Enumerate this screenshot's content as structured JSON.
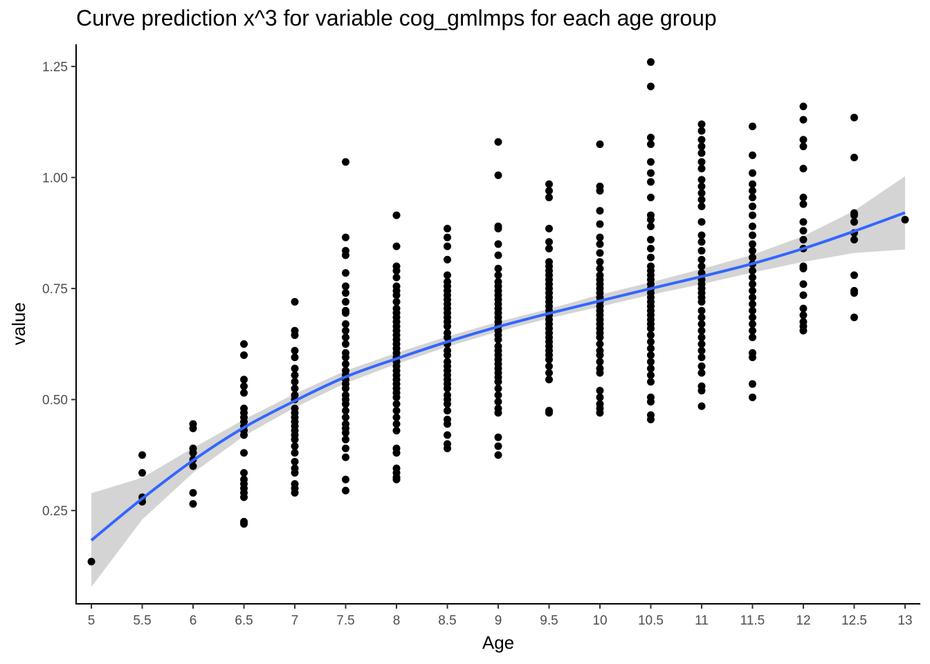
{
  "chart_data": {
    "type": "scatter",
    "title": "Curve prediction x^3  for variable cog_gmlmps for each age group",
    "xlabel": "Age",
    "ylabel": "value",
    "xlim": [
      4.85,
      13.15
    ],
    "ylim": [
      0.04,
      1.3
    ],
    "x_ticks": [
      5,
      5.5,
      6,
      6.5,
      7,
      7.5,
      8,
      8.5,
      9,
      9.5,
      10,
      10.5,
      11,
      11.5,
      12,
      12.5,
      13
    ],
    "x_tick_labels": [
      "5",
      "5.5",
      "6",
      "6.5",
      "7",
      "7.5",
      "8",
      "8.5",
      "9",
      "9.5",
      "10",
      "10.5",
      "11",
      "11.5",
      "12",
      "12.5",
      "13"
    ],
    "y_ticks": [
      0.25,
      0.5,
      0.75,
      1.0,
      1.25
    ],
    "y_tick_labels": [
      "0.25",
      "0.50",
      "0.75",
      "1.00",
      "1.25"
    ],
    "grid": false,
    "point_color": "#000000",
    "fit_color": "#3366FF",
    "band_color": "#CCCCCC",
    "points": [
      {
        "x": 5,
        "ys": [
          0.135
        ]
      },
      {
        "x": 5.5,
        "ys": [
          0.375,
          0.335,
          0.28,
          0.27
        ]
      },
      {
        "x": 6,
        "ys": [
          0.445,
          0.435,
          0.39,
          0.38,
          0.365,
          0.35,
          0.29,
          0.265
        ]
      },
      {
        "x": 6.5,
        "ys": [
          0.625,
          0.6,
          0.545,
          0.53,
          0.515,
          0.48,
          0.47,
          0.46,
          0.45,
          0.44,
          0.43,
          0.42,
          0.38,
          0.335,
          0.32,
          0.31,
          0.3,
          0.29,
          0.28,
          0.225,
          0.22
        ]
      },
      {
        "x": 7,
        "ys": [
          0.72,
          0.655,
          0.645,
          0.61,
          0.595,
          0.57,
          0.555,
          0.54,
          0.525,
          0.51,
          0.5,
          0.48,
          0.47,
          0.46,
          0.45,
          0.44,
          0.43,
          0.42,
          0.41,
          0.395,
          0.38,
          0.36,
          0.345,
          0.335,
          0.31,
          0.3,
          0.29
        ]
      },
      {
        "x": 7.5,
        "ys": [
          1.035,
          0.865,
          0.835,
          0.825,
          0.785,
          0.755,
          0.74,
          0.72,
          0.7,
          0.695,
          0.67,
          0.655,
          0.64,
          0.625,
          0.605,
          0.595,
          0.58,
          0.565,
          0.555,
          0.545,
          0.535,
          0.525,
          0.51,
          0.5,
          0.49,
          0.475,
          0.46,
          0.445,
          0.435,
          0.425,
          0.41,
          0.39,
          0.37,
          0.32,
          0.295
        ]
      },
      {
        "x": 8,
        "ys": [
          0.915,
          0.845,
          0.8,
          0.79,
          0.775,
          0.755,
          0.745,
          0.735,
          0.72,
          0.705,
          0.695,
          0.685,
          0.675,
          0.665,
          0.655,
          0.645,
          0.635,
          0.625,
          0.615,
          0.605,
          0.595,
          0.585,
          0.575,
          0.565,
          0.555,
          0.545,
          0.535,
          0.525,
          0.515,
          0.505,
          0.49,
          0.475,
          0.46,
          0.445,
          0.43,
          0.39,
          0.38,
          0.345,
          0.335,
          0.325,
          0.32
        ]
      },
      {
        "x": 8.5,
        "ys": [
          0.885,
          0.865,
          0.845,
          0.815,
          0.78,
          0.765,
          0.755,
          0.745,
          0.735,
          0.725,
          0.715,
          0.705,
          0.695,
          0.685,
          0.675,
          0.665,
          0.65,
          0.64,
          0.625,
          0.61,
          0.6,
          0.585,
          0.575,
          0.565,
          0.555,
          0.545,
          0.535,
          0.525,
          0.51,
          0.5,
          0.49,
          0.475,
          0.455,
          0.445,
          0.42,
          0.4,
          0.39
        ]
      },
      {
        "x": 9,
        "ys": [
          1.08,
          1.005,
          0.89,
          0.885,
          0.85,
          0.825,
          0.795,
          0.78,
          0.765,
          0.755,
          0.745,
          0.735,
          0.725,
          0.715,
          0.705,
          0.695,
          0.685,
          0.675,
          0.665,
          0.655,
          0.645,
          0.635,
          0.62,
          0.61,
          0.6,
          0.59,
          0.58,
          0.57,
          0.56,
          0.55,
          0.54,
          0.525,
          0.51,
          0.495,
          0.48,
          0.47,
          0.415,
          0.395,
          0.375
        ]
      },
      {
        "x": 9.5,
        "ys": [
          0.985,
          0.97,
          0.955,
          0.885,
          0.855,
          0.84,
          0.81,
          0.8,
          0.79,
          0.78,
          0.77,
          0.76,
          0.75,
          0.74,
          0.73,
          0.72,
          0.71,
          0.7,
          0.69,
          0.68,
          0.67,
          0.66,
          0.65,
          0.64,
          0.63,
          0.62,
          0.61,
          0.6,
          0.59,
          0.575,
          0.56,
          0.545,
          0.475,
          0.47
        ]
      },
      {
        "x": 10,
        "ys": [
          1.075,
          0.98,
          0.97,
          0.925,
          0.895,
          0.865,
          0.85,
          0.83,
          0.81,
          0.795,
          0.78,
          0.77,
          0.76,
          0.75,
          0.74,
          0.73,
          0.72,
          0.71,
          0.7,
          0.69,
          0.68,
          0.67,
          0.66,
          0.65,
          0.64,
          0.625,
          0.61,
          0.6,
          0.585,
          0.57,
          0.56,
          0.52,
          0.505,
          0.49,
          0.48,
          0.47
        ]
      },
      {
        "x": 10.5,
        "ys": [
          1.26,
          1.205,
          1.09,
          1.075,
          1.035,
          1.01,
          0.99,
          0.955,
          0.915,
          0.905,
          0.89,
          0.86,
          0.84,
          0.82,
          0.8,
          0.79,
          0.78,
          0.77,
          0.76,
          0.75,
          0.74,
          0.73,
          0.72,
          0.71,
          0.7,
          0.69,
          0.68,
          0.67,
          0.66,
          0.645,
          0.63,
          0.615,
          0.6,
          0.585,
          0.57,
          0.555,
          0.54,
          0.505,
          0.495,
          0.465,
          0.455
        ]
      },
      {
        "x": 11,
        "ys": [
          1.12,
          1.105,
          1.085,
          1.07,
          1.055,
          1.035,
          1.02,
          0.995,
          0.98,
          0.965,
          0.95,
          0.935,
          0.9,
          0.87,
          0.855,
          0.835,
          0.815,
          0.8,
          0.785,
          0.77,
          0.76,
          0.75,
          0.74,
          0.73,
          0.72,
          0.7,
          0.685,
          0.67,
          0.655,
          0.64,
          0.625,
          0.61,
          0.595,
          0.575,
          0.56,
          0.53,
          0.52,
          0.485
        ]
      },
      {
        "x": 11.5,
        "ys": [
          1.115,
          1.05,
          1.01,
          0.985,
          0.97,
          0.955,
          0.935,
          0.915,
          0.89,
          0.87,
          0.85,
          0.835,
          0.82,
          0.805,
          0.79,
          0.775,
          0.76,
          0.745,
          0.73,
          0.715,
          0.7,
          0.685,
          0.67,
          0.655,
          0.64,
          0.605,
          0.595,
          0.535,
          0.505
        ]
      },
      {
        "x": 12,
        "ys": [
          1.16,
          1.13,
          1.085,
          1.07,
          1.02,
          0.955,
          0.94,
          0.9,
          0.88,
          0.86,
          0.84,
          0.8,
          0.795,
          0.76,
          0.735,
          0.705,
          0.69,
          0.675,
          0.665,
          0.655
        ]
      },
      {
        "x": 12.5,
        "ys": [
          1.135,
          1.045,
          0.92,
          0.915,
          0.9,
          0.875,
          0.86,
          0.78,
          0.745,
          0.74,
          0.685
        ]
      },
      {
        "x": 13,
        "ys": [
          0.905
        ]
      }
    ],
    "fit_x": [
      5,
      5.5,
      6,
      6.5,
      7,
      7.5,
      8,
      8.5,
      9,
      9.5,
      10,
      10.5,
      11,
      11.5,
      12,
      12.5,
      13
    ],
    "fit_y": [
      0.183,
      0.277,
      0.363,
      0.437,
      0.497,
      0.551,
      0.592,
      0.63,
      0.664,
      0.694,
      0.722,
      0.75,
      0.777,
      0.806,
      0.84,
      0.879,
      0.921
    ],
    "band_lower": [
      0.078,
      0.23,
      0.335,
      0.418,
      0.482,
      0.537,
      0.58,
      0.619,
      0.653,
      0.683,
      0.709,
      0.736,
      0.76,
      0.786,
      0.81,
      0.83,
      0.838
    ],
    "band_upper": [
      0.289,
      0.324,
      0.391,
      0.455,
      0.513,
      0.565,
      0.605,
      0.642,
      0.675,
      0.704,
      0.736,
      0.764,
      0.794,
      0.826,
      0.868,
      0.925,
      1.003
    ]
  }
}
